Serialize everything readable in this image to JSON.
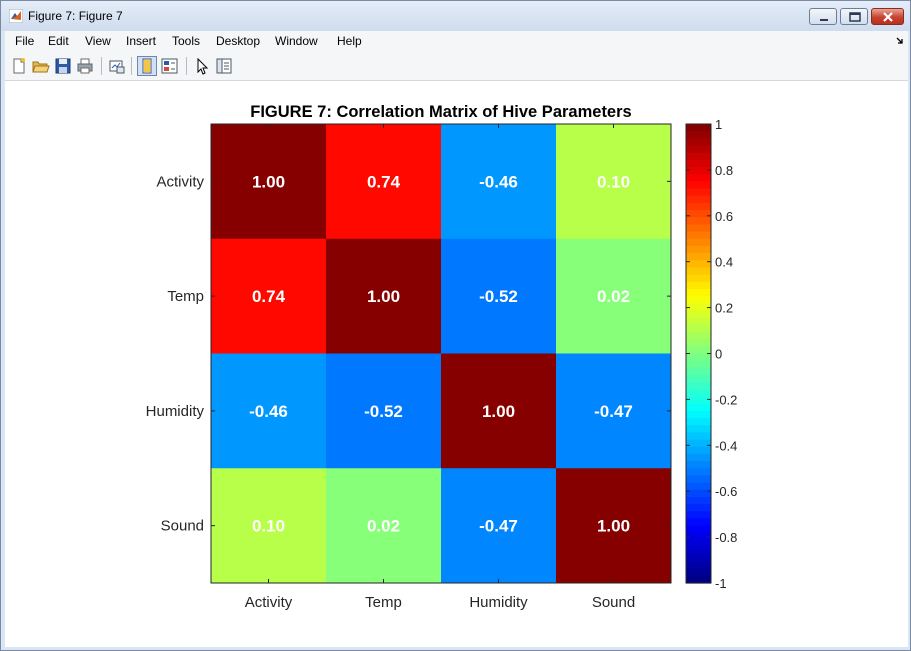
{
  "window": {
    "title": "Figure 7: Figure 7",
    "icon": "matlab-logo-icon"
  },
  "menu": {
    "items": [
      "File",
      "Edit",
      "View",
      "Insert",
      "Tools",
      "Desktop",
      "Window",
      "Help"
    ]
  },
  "toolbar": {
    "buttons": [
      "new-figure-icon",
      "open-file-icon",
      "save-icon",
      "print-icon",
      "link-plot-icon",
      "hide-plot-tools-icon",
      "show-plot-tools-icon",
      "edit-plot-icon",
      "open-property-inspector-icon"
    ]
  },
  "colors": {
    "title_bar": "#cfdcee",
    "menu_bg": "#f5f6f7",
    "cell_text": "#ffffff"
  },
  "chart_data": {
    "type": "heatmap",
    "title": "FIGURE 7: Correlation Matrix of Hive Parameters",
    "row_labels": [
      "Activity",
      "Temp",
      "Humidity",
      "Sound"
    ],
    "col_labels": [
      "Activity",
      "Temp",
      "Humidity",
      "Sound"
    ],
    "values": [
      [
        1.0,
        0.74,
        -0.46,
        0.1
      ],
      [
        0.74,
        1.0,
        -0.52,
        0.02
      ],
      [
        -0.46,
        -0.52,
        1.0,
        -0.47
      ],
      [
        0.1,
        0.02,
        -0.47,
        1.0
      ]
    ],
    "value_labels": [
      [
        "1.00",
        "0.74",
        "-0.46",
        "0.10"
      ],
      [
        "0.74",
        "1.00",
        "-0.52",
        "0.02"
      ],
      [
        "-0.46",
        "-0.52",
        "1.00",
        "-0.47"
      ],
      [
        "0.10",
        "0.02",
        "-0.47",
        "1.00"
      ]
    ],
    "colormap": "jet",
    "clim": [
      -1,
      1
    ],
    "colorbar": {
      "ticks": [
        1,
        0.8,
        0.6,
        0.4,
        0.2,
        0,
        -0.2,
        -0.4,
        -0.6,
        -0.8,
        -1
      ],
      "tick_labels": [
        "1",
        "0.8",
        "0.6",
        "0.4",
        "0.2",
        "0",
        "-0.2",
        "-0.4",
        "-0.6",
        "-0.8",
        "-1"
      ],
      "placement": "right"
    }
  }
}
